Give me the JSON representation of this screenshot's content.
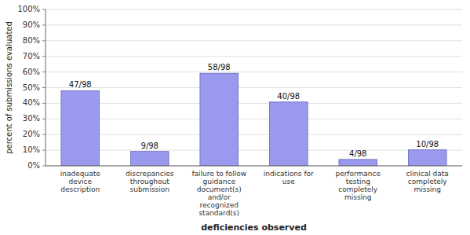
{
  "chart_data": {
    "type": "bar",
    "categories": [
      "inadequate\ndevice\ndescription",
      "discrepancies\nthroughout\nsubmission",
      "failure to follow\nguidance\ndocument(s)\nand/or\nrecognized\nstandard(s)",
      "indications for\nuse",
      "performance\ntesting\ncompletely\nmissing",
      "clinical data\ncompletely\nmissing"
    ],
    "values": [
      48.0,
      9.2,
      59.2,
      40.8,
      4.1,
      10.2
    ],
    "value_labels": [
      "47/98",
      "9/98",
      "58/98",
      "40/98",
      "4/98",
      "10/98"
    ],
    "data_labels": true,
    "color": "#9999ee",
    "xlabel": "deficiencies observed",
    "ylabel": "percent of submissions evaluated",
    "ylim": [
      0,
      100
    ],
    "yticks": [
      {
        "value": 0,
        "label": "0%"
      },
      {
        "value": 10,
        "label": "10%"
      },
      {
        "value": 20,
        "label": "20%"
      },
      {
        "value": 30,
        "label": "30%"
      },
      {
        "value": 40,
        "label": "40%"
      },
      {
        "value": 50,
        "label": "50%"
      },
      {
        "value": 60,
        "label": "60%"
      },
      {
        "value": 70,
        "label": "70%"
      },
      {
        "value": 80,
        "label": "80%"
      },
      {
        "value": 90,
        "label": "90%"
      },
      {
        "value": 100,
        "label": "100%"
      }
    ],
    "grid": true
  }
}
